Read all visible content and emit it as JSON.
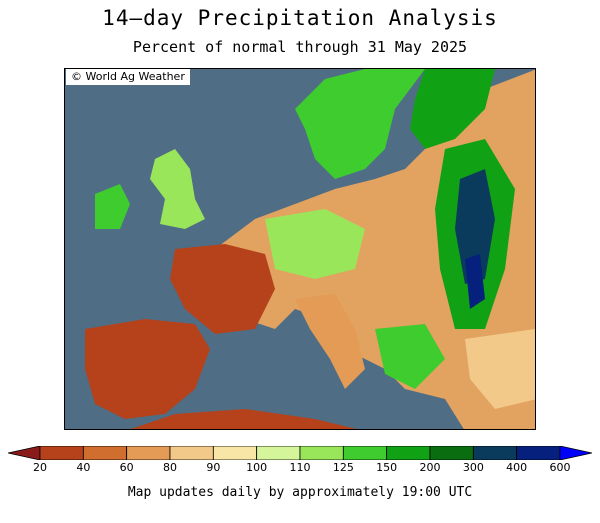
{
  "header": {
    "title": "14–day Precipitation Analysis",
    "subtitle": "Percent of normal through 31 May 2025"
  },
  "map": {
    "credit": "© World Ag Weather",
    "region": "Europe",
    "ocean_color": "#4f6e85",
    "border_color": "#000000"
  },
  "legend": {
    "labels": [
      "20",
      "40",
      "60",
      "80",
      "90",
      "100",
      "110",
      "125",
      "150",
      "200",
      "300",
      "400",
      "600"
    ],
    "colors": [
      "#8b1a1a",
      "#b5421b",
      "#cf6e2e",
      "#e39b55",
      "#f3c98a",
      "#f8e6a6",
      "#d4f59a",
      "#9ae65a",
      "#3fcc2e",
      "#11a114",
      "#0a6d0f",
      "#0a3b5c",
      "#06207e",
      "#0000ff"
    ]
  },
  "footer": {
    "text": "Map updates daily by approximately 19:00 UTC"
  }
}
